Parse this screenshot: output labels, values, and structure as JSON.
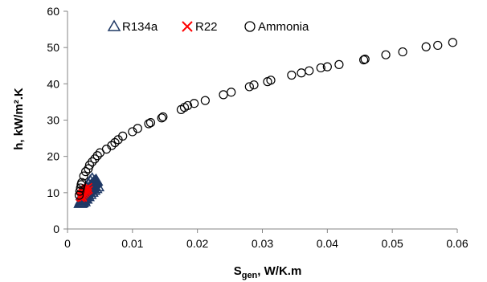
{
  "chart_data": {
    "type": "scatter",
    "title": "",
    "xlabel": {
      "main": "S",
      "sub": "gen",
      "rest": ", W/K.m"
    },
    "ylabel": "h, kW/m².K",
    "xlim": [
      0,
      0.06
    ],
    "ylim": [
      0,
      60
    ],
    "x_ticks": [
      "0",
      "0.01",
      "0.02",
      "0.03",
      "0.04",
      "0.05",
      "0.06"
    ],
    "y_ticks": [
      "0",
      "10",
      "20",
      "30",
      "40",
      "50",
      "60"
    ],
    "grid": false,
    "legend_position": "top-left",
    "series": [
      {
        "name": "R134a",
        "marker": "triangle",
        "color": "#1f3864",
        "points": [
          [
            0.002,
            7.0
          ],
          [
            0.0021,
            7.4
          ],
          [
            0.0022,
            7.8
          ],
          [
            0.0023,
            8.1
          ],
          [
            0.0024,
            8.4
          ],
          [
            0.0025,
            8.7
          ],
          [
            0.0026,
            9.0
          ],
          [
            0.0027,
            9.3
          ],
          [
            0.0028,
            9.6
          ],
          [
            0.0029,
            9.9
          ],
          [
            0.003,
            10.2
          ],
          [
            0.0031,
            10.5
          ],
          [
            0.0032,
            10.8
          ],
          [
            0.0033,
            11.0
          ],
          [
            0.0034,
            11.3
          ],
          [
            0.0035,
            11.5
          ],
          [
            0.0036,
            11.7
          ],
          [
            0.0037,
            11.9
          ],
          [
            0.0038,
            12.1
          ],
          [
            0.0039,
            12.3
          ],
          [
            0.004,
            12.5
          ],
          [
            0.0041,
            12.7
          ],
          [
            0.0042,
            12.9
          ],
          [
            0.0043,
            13.0
          ],
          [
            0.0044,
            13.2
          ],
          [
            0.0022,
            7.2
          ],
          [
            0.0024,
            7.9
          ],
          [
            0.0026,
            8.5
          ],
          [
            0.0028,
            9.1
          ],
          [
            0.003,
            9.6
          ],
          [
            0.0032,
            10.1
          ],
          [
            0.0034,
            10.6
          ],
          [
            0.0036,
            11.0
          ],
          [
            0.0038,
            11.4
          ],
          [
            0.004,
            11.8
          ],
          [
            0.0025,
            7.5
          ],
          [
            0.0028,
            8.2
          ],
          [
            0.0031,
            8.9
          ],
          [
            0.0034,
            9.5
          ],
          [
            0.0037,
            10.1
          ],
          [
            0.004,
            10.6
          ],
          [
            0.0043,
            11.1
          ],
          [
            0.0046,
            11.6
          ],
          [
            0.0023,
            9.2
          ],
          [
            0.0026,
            10.3
          ],
          [
            0.0029,
            11.3
          ],
          [
            0.0032,
            12.2
          ],
          [
            0.0035,
            13.0
          ],
          [
            0.0038,
            13.6
          ]
        ]
      },
      {
        "name": "R22",
        "marker": "x",
        "color": "#ff0000",
        "points": [
          [
            0.0019,
            8.8
          ],
          [
            0.002,
            9.2
          ],
          [
            0.0021,
            9.5
          ],
          [
            0.0022,
            9.8
          ],
          [
            0.0023,
            10.0
          ],
          [
            0.0024,
            10.3
          ],
          [
            0.0025,
            10.5
          ],
          [
            0.0026,
            10.7
          ],
          [
            0.0027,
            10.9
          ],
          [
            0.0028,
            11.1
          ],
          [
            0.0021,
            8.5
          ],
          [
            0.0023,
            9.0
          ],
          [
            0.0025,
            9.4
          ],
          [
            0.0027,
            9.8
          ],
          [
            0.0029,
            10.2
          ],
          [
            0.0031,
            10.5
          ],
          [
            0.0033,
            10.8
          ],
          [
            0.003,
            11.3
          ],
          [
            0.0032,
            11.6
          ],
          [
            0.0024,
            8.6
          ]
        ]
      },
      {
        "name": "Ammonia",
        "marker": "circle",
        "color": "#000000",
        "points": [
          [
            0.0018,
            9.3
          ],
          [
            0.0019,
            10.4
          ],
          [
            0.002,
            11.3
          ],
          [
            0.0021,
            12.2
          ],
          [
            0.0022,
            12.8
          ],
          [
            0.0025,
            14.6
          ],
          [
            0.0028,
            15.8
          ],
          [
            0.0032,
            16.6
          ],
          [
            0.0034,
            17.6
          ],
          [
            0.0038,
            18.5
          ],
          [
            0.0042,
            19.3
          ],
          [
            0.0046,
            20.2
          ],
          [
            0.005,
            21.0
          ],
          [
            0.006,
            22.0
          ],
          [
            0.0068,
            23.0
          ],
          [
            0.0073,
            23.8
          ],
          [
            0.0078,
            24.6
          ],
          [
            0.0085,
            25.6
          ],
          [
            0.01,
            26.8
          ],
          [
            0.0108,
            27.7
          ],
          [
            0.0125,
            29.0
          ],
          [
            0.0128,
            29.3
          ],
          [
            0.0145,
            30.6
          ],
          [
            0.0147,
            30.9
          ],
          [
            0.0175,
            32.9
          ],
          [
            0.018,
            33.5
          ],
          [
            0.0185,
            34.0
          ],
          [
            0.0195,
            34.6
          ],
          [
            0.0212,
            35.4
          ],
          [
            0.024,
            37.0
          ],
          [
            0.0252,
            37.7
          ],
          [
            0.028,
            39.2
          ],
          [
            0.0287,
            39.7
          ],
          [
            0.0308,
            40.6
          ],
          [
            0.0313,
            41.0
          ],
          [
            0.0345,
            42.4
          ],
          [
            0.036,
            43.0
          ],
          [
            0.0372,
            43.6
          ],
          [
            0.039,
            44.4
          ],
          [
            0.04,
            44.7
          ],
          [
            0.0418,
            45.3
          ],
          [
            0.0456,
            46.6
          ],
          [
            0.0458,
            46.8
          ],
          [
            0.049,
            48.0
          ],
          [
            0.0516,
            48.8
          ],
          [
            0.0552,
            50.2
          ],
          [
            0.057,
            50.6
          ],
          [
            0.0593,
            51.4
          ]
        ]
      }
    ]
  }
}
